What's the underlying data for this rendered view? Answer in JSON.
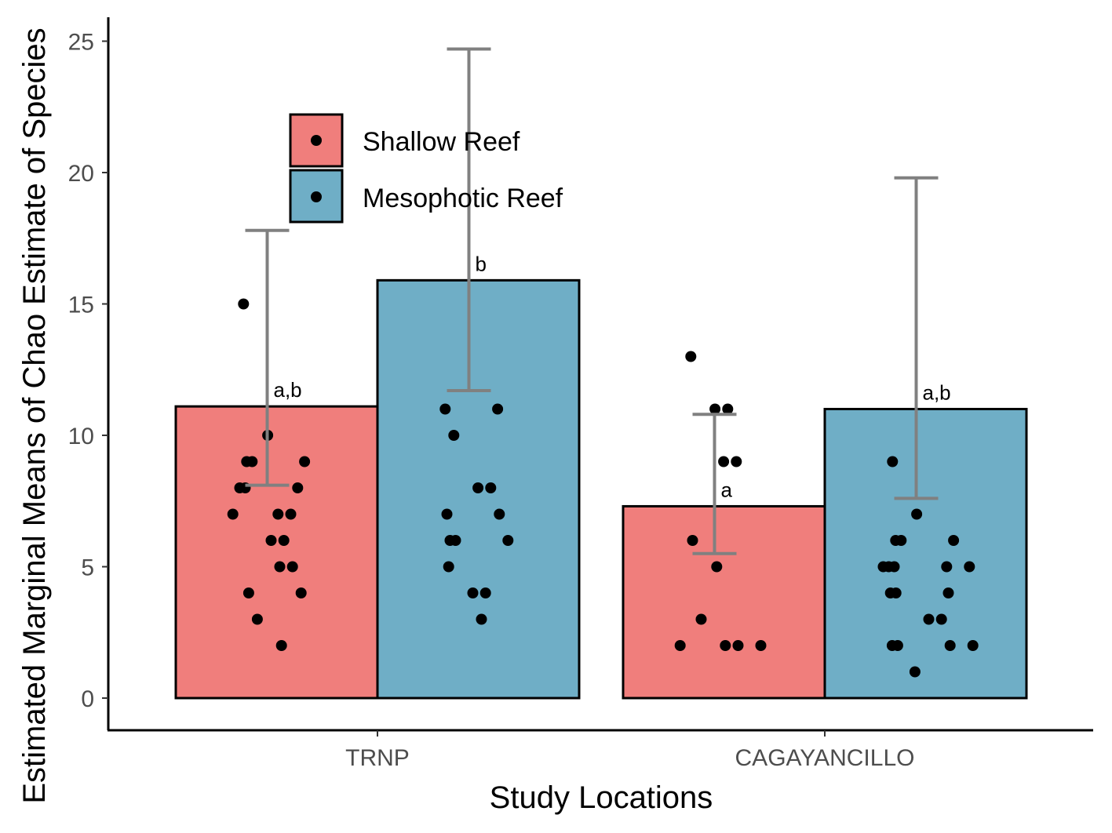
{
  "chart_data": {
    "type": "bar",
    "xlabel": "Study Locations",
    "ylabel": "Estimated Marginal Means of Chao Estimate of Species",
    "categories": [
      "TRNP",
      "CAGAYANCILLO"
    ],
    "ylim": [
      -1.2,
      26
    ],
    "yticks": [
      0,
      5,
      10,
      15,
      20,
      25
    ],
    "legend": {
      "position": "top-left",
      "entries": [
        "Shallow Reef",
        "Mesophotic Reef"
      ]
    },
    "grid": false,
    "series": [
      {
        "name": "Shallow Reef",
        "color": "#F07E7C",
        "values": [
          11.1,
          7.3
        ],
        "ci_lower": [
          8.1,
          5.5
        ],
        "ci_upper": [
          17.8,
          10.8
        ],
        "labels": [
          "a,b",
          "a"
        ],
        "points": [
          [
            15,
            10,
            9,
            9,
            9,
            8,
            8,
            8,
            7,
            7,
            7,
            6,
            6,
            5,
            5,
            4,
            4,
            3,
            2
          ],
          [
            13,
            11,
            11,
            9,
            9,
            6,
            5,
            3,
            2,
            2,
            2,
            2
          ]
        ]
      },
      {
        "name": "Mesophotic Reef",
        "color": "#6FAEC6",
        "values": [
          15.9,
          11.0
        ],
        "ci_lower": [
          11.7,
          7.6
        ],
        "ci_upper": [
          24.7,
          19.8
        ],
        "labels": [
          "b",
          "a,b"
        ],
        "points": [
          [
            11,
            11,
            10,
            8,
            8,
            7,
            7,
            6,
            6,
            6,
            5,
            4,
            4,
            3
          ],
          [
            9,
            7,
            6,
            6,
            6,
            5,
            5,
            5,
            5,
            5,
            4,
            4,
            4,
            3,
            3,
            2,
            2,
            2,
            2,
            1
          ]
        ]
      }
    ]
  }
}
